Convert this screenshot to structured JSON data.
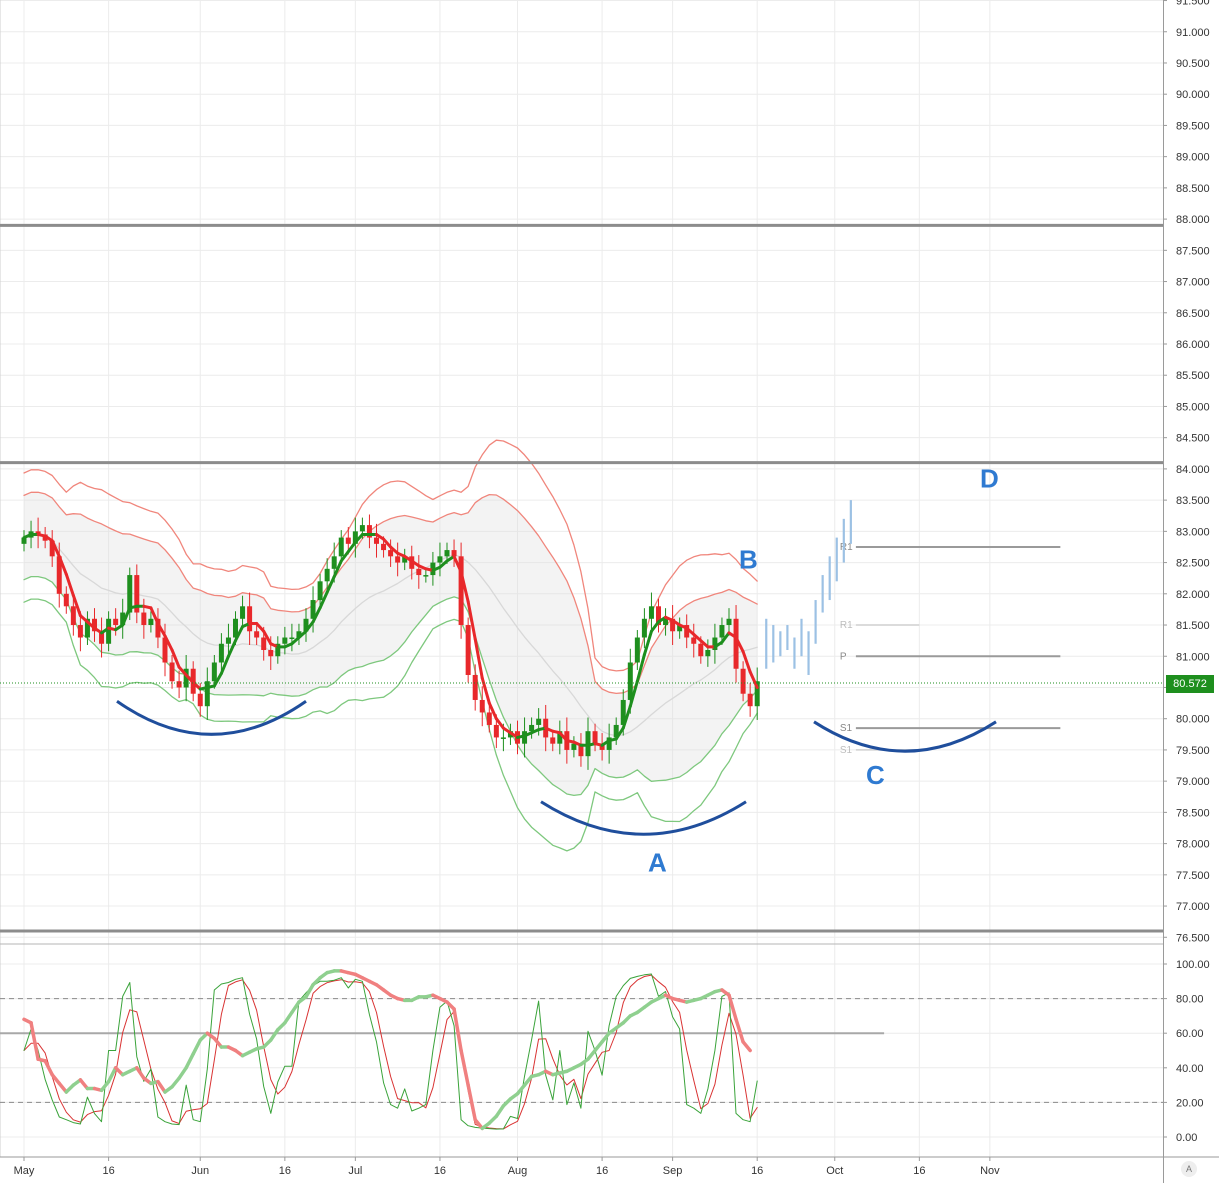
{
  "colors": {
    "up": "#1e8f1e",
    "down": "#e8282b",
    "band": "#f0867c",
    "band_lower": "#7ec87e",
    "stoch_fast": "#3aa33a",
    "stoch_slow": "#d93333",
    "rsi_up": "#8fd08f",
    "rsi_down": "#f08080",
    "pattern_arc": "#1f4e9c",
    "pattern_label": "#2f7ad1",
    "horizontal_level": "#8c8c8c",
    "projection": "#9cc1e4",
    "last_price_bg": "#1e8f1e"
  },
  "last_price_label": "80.572",
  "scale_mode_label": "A",
  "chart_data": [
    {
      "type": "candlestick",
      "title": "",
      "ylim": [
        76.5,
        91.5
      ],
      "y_ticks": [
        "76.500",
        "77.000",
        "77.500",
        "78.000",
        "78.500",
        "79.000",
        "79.500",
        "80.000",
        "80.500",
        "81.000",
        "81.500",
        "82.000",
        "82.500",
        "83.000",
        "83.500",
        "84.000",
        "84.500",
        "85.000",
        "85.500",
        "86.000",
        "86.500",
        "87.000",
        "87.500",
        "88.000",
        "88.500",
        "89.000",
        "89.500",
        "90.000",
        "90.500",
        "91.000",
        "91.500"
      ],
      "x_ticks": [
        "May",
        "16",
        "Jun",
        "16",
        "Jul",
        "16",
        "Aug",
        "16",
        "Sep",
        "16",
        "Oct",
        "16",
        "Nov"
      ],
      "x_ticks_at": [
        0,
        12,
        25,
        37,
        47,
        59,
        70,
        82,
        92,
        104,
        115,
        127,
        137
      ],
      "last_price": 80.572,
      "horizontal_levels": [
        87.9,
        84.1,
        76.6
      ],
      "closes": [
        82.9,
        83.0,
        82.95,
        82.85,
        82.6,
        82.0,
        81.8,
        81.5,
        81.3,
        81.6,
        81.4,
        81.2,
        81.6,
        81.5,
        81.7,
        82.3,
        81.7,
        81.5,
        81.6,
        81.3,
        80.9,
        80.6,
        80.5,
        80.8,
        80.4,
        80.2,
        80.6,
        80.9,
        81.2,
        81.3,
        81.6,
        81.8,
        81.4,
        81.3,
        81.1,
        81.0,
        81.2,
        81.3,
        81.3,
        81.4,
        81.6,
        81.9,
        82.2,
        82.4,
        82.6,
        82.9,
        82.8,
        83.0,
        83.1,
        82.9,
        82.8,
        82.7,
        82.6,
        82.5,
        82.6,
        82.4,
        82.3,
        82.3,
        82.5,
        82.6,
        82.7,
        82.6,
        81.5,
        80.7,
        80.3,
        80.1,
        79.9,
        79.7,
        79.7,
        79.8,
        79.6,
        79.8,
        79.9,
        80.0,
        79.7,
        79.6,
        79.8,
        79.5,
        79.6,
        79.4,
        79.8,
        79.6,
        79.5,
        79.7,
        79.9,
        80.3,
        80.9,
        81.3,
        81.6,
        81.8,
        81.5,
        81.6,
        81.4,
        81.5,
        81.3,
        81.2,
        81.0,
        81.1,
        81.3,
        81.5,
        81.6,
        80.8,
        80.4,
        80.2,
        80.6
      ],
      "pivot_levels": [
        {
          "name": "R1",
          "value": 82.75
        },
        {
          "name": "R1",
          "value": 81.5
        },
        {
          "name": "P",
          "value": 81.0
        },
        {
          "name": "S1",
          "value": 79.85
        },
        {
          "name": "S1",
          "value": 79.5
        }
      ],
      "projection_bars": [
        [
          81.6,
          80.8
        ],
        [
          81.5,
          80.9
        ],
        [
          81.4,
          81.0
        ],
        [
          81.5,
          81.1
        ],
        [
          81.3,
          80.8
        ],
        [
          81.6,
          81.0
        ],
        [
          81.4,
          80.7
        ],
        [
          81.9,
          81.2
        ],
        [
          82.3,
          81.7
        ],
        [
          82.6,
          81.9
        ],
        [
          82.9,
          82.2
        ],
        [
          83.2,
          82.5
        ],
        [
          83.5,
          82.8
        ]
      ],
      "patterns": [
        {
          "label": "A",
          "arc_low": 78.15,
          "label_y": 77.7
        },
        {
          "label": "B",
          "label_y": 82.55
        },
        {
          "label": "C",
          "arc_low": 79.48,
          "label_y": 79.1
        },
        {
          "label": "D",
          "label_y": 83.85
        }
      ]
    },
    {
      "type": "line",
      "title": "",
      "ylim": [
        0,
        100
      ],
      "y_ticks": [
        "0.00",
        "20.00",
        "40.00",
        "60.00",
        "80.00",
        "100.00"
      ],
      "hlines": [
        20,
        60,
        80
      ],
      "series": [
        {
          "values": [
            68,
            66,
            45,
            44,
            36,
            31,
            26,
            30,
            33,
            28,
            28,
            27,
            32,
            40,
            36,
            38,
            40,
            34,
            31,
            32,
            26,
            29,
            34,
            40,
            48,
            56,
            60,
            57,
            52,
            52,
            50,
            47,
            49,
            51,
            52,
            56,
            62,
            66,
            72,
            78,
            81,
            88,
            92,
            95,
            96,
            96,
            95,
            94,
            92,
            90,
            88,
            85,
            82,
            80,
            79,
            79,
            81,
            81,
            82,
            80,
            78,
            74,
            50,
            30,
            10,
            5,
            8,
            12,
            18,
            22,
            25,
            30,
            35,
            36,
            38,
            36,
            37,
            38,
            40,
            42,
            45,
            50,
            55,
            60,
            63,
            66,
            70,
            72,
            75,
            78,
            80,
            82,
            80,
            79,
            78,
            79,
            80,
            82,
            84,
            85,
            82,
            68,
            55,
            50
          ]
        }
      ]
    }
  ]
}
